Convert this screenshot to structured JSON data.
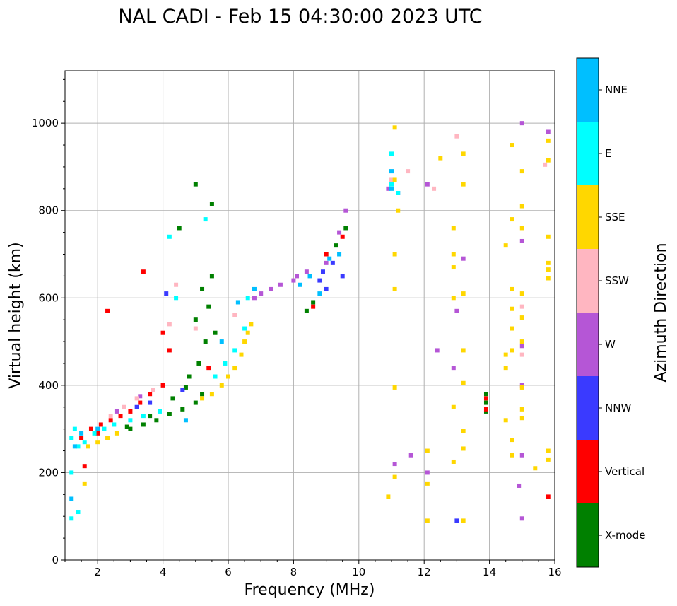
{
  "chart_data": {
    "type": "scatter",
    "title": "NAL CADI - Feb 15 04:30:00 2023 UTC",
    "xlabel": "Frequency (MHz)",
    "ylabel": "Virtual height (km)",
    "xlim": [
      1,
      16
    ],
    "ylim": [
      0,
      1120
    ],
    "xticks": [
      2,
      4,
      6,
      8,
      10,
      12,
      14,
      16
    ],
    "yticks": [
      0,
      200,
      400,
      600,
      800,
      1000
    ],
    "grid": true,
    "colorbar": {
      "title": "Azimuth Direction",
      "categories": [
        {
          "name": "X-mode",
          "color": "#008000"
        },
        {
          "name": "Vertical",
          "color": "#ff0000"
        },
        {
          "name": "NNW",
          "color": "#3a3aff"
        },
        {
          "name": "W",
          "color": "#b556d6"
        },
        {
          "name": "SSW",
          "color": "#ffb6c1"
        },
        {
          "name": "SSE",
          "color": "#ffd700"
        },
        {
          "name": "E",
          "color": "#00ffff"
        },
        {
          "name": "NNE",
          "color": "#00bfff"
        }
      ]
    },
    "series": [
      {
        "name": "X-mode",
        "points": [
          [
            3.0,
            300
          ],
          [
            3.4,
            310
          ],
          [
            3.8,
            320
          ],
          [
            4.2,
            335
          ],
          [
            4.6,
            345
          ],
          [
            5.0,
            360
          ],
          [
            5.2,
            380
          ],
          [
            4.8,
            420
          ],
          [
            5.1,
            450
          ],
          [
            5.3,
            500
          ],
          [
            5.0,
            550
          ],
          [
            5.4,
            580
          ],
          [
            5.2,
            620
          ],
          [
            5.5,
            650
          ],
          [
            4.5,
            760
          ],
          [
            5.0,
            860
          ],
          [
            5.5,
            815
          ],
          [
            8.4,
            570
          ],
          [
            8.6,
            590
          ],
          [
            9.0,
            700
          ],
          [
            9.3,
            720
          ],
          [
            9.6,
            760
          ],
          [
            13.9,
            360
          ],
          [
            13.9,
            380
          ],
          [
            13.9,
            340
          ],
          [
            4.3,
            370
          ],
          [
            4.7,
            395
          ],
          [
            3.6,
            330
          ],
          [
            2.9,
            305
          ],
          [
            5.6,
            520
          ]
        ]
      },
      {
        "name": "Vertical",
        "points": [
          [
            1.5,
            280
          ],
          [
            1.8,
            300
          ],
          [
            2.1,
            310
          ],
          [
            2.4,
            320
          ],
          [
            2.7,
            330
          ],
          [
            3.0,
            340
          ],
          [
            3.3,
            360
          ],
          [
            3.6,
            380
          ],
          [
            4.0,
            400
          ],
          [
            4.0,
            520
          ],
          [
            4.2,
            480
          ],
          [
            2.3,
            570
          ],
          [
            3.4,
            660
          ],
          [
            5.4,
            440
          ],
          [
            8.6,
            580
          ],
          [
            9.0,
            700
          ],
          [
            9.5,
            740
          ],
          [
            13.9,
            345
          ],
          [
            13.9,
            370
          ],
          [
            15.8,
            145
          ],
          [
            1.6,
            215
          ],
          [
            2.0,
            290
          ]
        ]
      },
      {
        "name": "NNW",
        "points": [
          [
            8.8,
            640
          ],
          [
            9.0,
            620
          ],
          [
            9.2,
            680
          ],
          [
            9.5,
            650
          ],
          [
            8.9,
            660
          ],
          [
            13.0,
            90
          ],
          [
            3.2,
            350
          ],
          [
            3.6,
            360
          ],
          [
            4.1,
            610
          ],
          [
            4.6,
            390
          ]
        ]
      },
      {
        "name": "W",
        "points": [
          [
            6.8,
            600
          ],
          [
            7.0,
            610
          ],
          [
            7.3,
            620
          ],
          [
            7.6,
            630
          ],
          [
            8.0,
            640
          ],
          [
            8.1,
            650
          ],
          [
            8.4,
            660
          ],
          [
            9.0,
            680
          ],
          [
            9.4,
            750
          ],
          [
            9.6,
            800
          ],
          [
            12.4,
            480
          ],
          [
            12.9,
            440
          ],
          [
            13.0,
            570
          ],
          [
            13.2,
            690
          ],
          [
            15.0,
            1000
          ],
          [
            15.0,
            730
          ],
          [
            15.0,
            490
          ],
          [
            15.0,
            400
          ],
          [
            15.0,
            240
          ],
          [
            14.9,
            170
          ],
          [
            15.0,
            95
          ],
          [
            15.8,
            980
          ],
          [
            11.1,
            220
          ],
          [
            12.1,
            200
          ],
          [
            11.6,
            240
          ],
          [
            10.9,
            850
          ],
          [
            11.2,
            840
          ],
          [
            12.1,
            860
          ],
          [
            2.6,
            340
          ],
          [
            3.3,
            375
          ]
        ]
      },
      {
        "name": "SSW",
        "points": [
          [
            2.4,
            330
          ],
          [
            2.8,
            350
          ],
          [
            3.2,
            370
          ],
          [
            3.7,
            390
          ],
          [
            4.2,
            540
          ],
          [
            4.4,
            630
          ],
          [
            5.0,
            530
          ],
          [
            6.2,
            560
          ],
          [
            11.0,
            870
          ],
          [
            11.5,
            890
          ],
          [
            12.3,
            850
          ],
          [
            13.0,
            970
          ],
          [
            15.0,
            580
          ],
          [
            15.0,
            470
          ],
          [
            15.7,
            905
          ]
        ]
      },
      {
        "name": "SSE",
        "points": [
          [
            1.6,
            175
          ],
          [
            1.7,
            260
          ],
          [
            2.0,
            270
          ],
          [
            2.3,
            280
          ],
          [
            2.6,
            290
          ],
          [
            5.2,
            370
          ],
          [
            5.5,
            380
          ],
          [
            5.8,
            400
          ],
          [
            6.0,
            420
          ],
          [
            6.2,
            440
          ],
          [
            6.4,
            470
          ],
          [
            6.5,
            500
          ],
          [
            6.6,
            520
          ],
          [
            6.7,
            540
          ],
          [
            11.1,
            990
          ],
          [
            11.1,
            870
          ],
          [
            11.2,
            800
          ],
          [
            11.1,
            700
          ],
          [
            11.1,
            620
          ],
          [
            11.1,
            395
          ],
          [
            11.1,
            190
          ],
          [
            10.9,
            145
          ],
          [
            12.1,
            250
          ],
          [
            12.1,
            175
          ],
          [
            12.1,
            90
          ],
          [
            12.5,
            920
          ],
          [
            12.9,
            760
          ],
          [
            12.9,
            700
          ],
          [
            12.9,
            670
          ],
          [
            12.9,
            600
          ],
          [
            12.9,
            350
          ],
          [
            12.9,
            225
          ],
          [
            13.2,
            930
          ],
          [
            13.2,
            860
          ],
          [
            13.2,
            610
          ],
          [
            13.2,
            480
          ],
          [
            13.2,
            405
          ],
          [
            13.2,
            295
          ],
          [
            13.2,
            255
          ],
          [
            13.2,
            90
          ],
          [
            14.5,
            720
          ],
          [
            14.5,
            470
          ],
          [
            14.5,
            440
          ],
          [
            14.5,
            320
          ],
          [
            14.7,
            950
          ],
          [
            14.7,
            780
          ],
          [
            14.7,
            620
          ],
          [
            14.7,
            575
          ],
          [
            14.7,
            530
          ],
          [
            14.7,
            480
          ],
          [
            14.7,
            275
          ],
          [
            14.7,
            240
          ],
          [
            15.0,
            890
          ],
          [
            15.0,
            810
          ],
          [
            15.0,
            760
          ],
          [
            15.0,
            610
          ],
          [
            15.0,
            555
          ],
          [
            15.0,
            500
          ],
          [
            15.0,
            395
          ],
          [
            15.0,
            345
          ],
          [
            15.0,
            325
          ],
          [
            15.4,
            210
          ],
          [
            15.8,
            960
          ],
          [
            15.8,
            915
          ],
          [
            15.8,
            740
          ],
          [
            15.8,
            680
          ],
          [
            15.8,
            665
          ],
          [
            15.8,
            645
          ],
          [
            15.8,
            250
          ],
          [
            15.8,
            230
          ]
        ]
      },
      {
        "name": "E",
        "points": [
          [
            1.2,
            280
          ],
          [
            1.3,
            300
          ],
          [
            1.4,
            260
          ],
          [
            1.6,
            270
          ],
          [
            1.9,
            290
          ],
          [
            2.2,
            300
          ],
          [
            2.5,
            310
          ],
          [
            3.0,
            320
          ],
          [
            3.4,
            330
          ],
          [
            3.9,
            340
          ],
          [
            4.2,
            740
          ],
          [
            4.4,
            600
          ],
          [
            5.3,
            780
          ],
          [
            5.6,
            420
          ],
          [
            5.9,
            450
          ],
          [
            6.2,
            480
          ],
          [
            6.5,
            530
          ],
          [
            6.6,
            600
          ],
          [
            1.2,
            200
          ],
          [
            1.4,
            110
          ],
          [
            1.2,
            95
          ],
          [
            11.0,
            930
          ],
          [
            11.0,
            860
          ],
          [
            11.2,
            840
          ]
        ]
      },
      {
        "name": "NNE",
        "points": [
          [
            1.3,
            260
          ],
          [
            1.5,
            290
          ],
          [
            2.0,
            300
          ],
          [
            4.7,
            320
          ],
          [
            5.8,
            500
          ],
          [
            6.3,
            590
          ],
          [
            6.8,
            620
          ],
          [
            8.2,
            630
          ],
          [
            8.5,
            650
          ],
          [
            8.8,
            610
          ],
          [
            9.1,
            690
          ],
          [
            9.4,
            700
          ],
          [
            11.0,
            890
          ],
          [
            11.0,
            850
          ],
          [
            1.2,
            140
          ]
        ]
      }
    ]
  }
}
